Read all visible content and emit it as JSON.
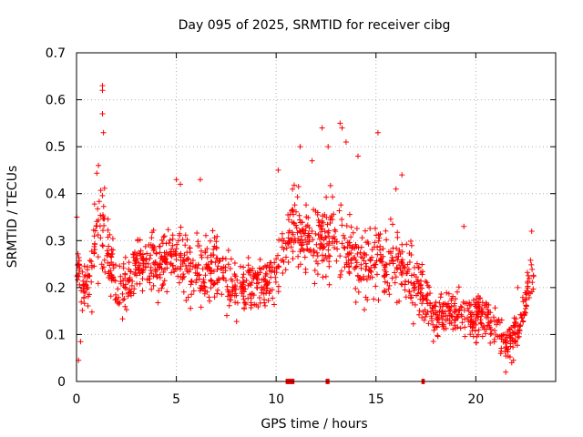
{
  "chart_data": {
    "type": "scatter",
    "title": "Day 095 of 2025, SRMTID for receiver cibg",
    "xlabel": "GPS time / hours",
    "ylabel": "SRMTID / TECUs",
    "xlim": [
      0,
      24
    ],
    "ylim": [
      0,
      0.7
    ],
    "x_ticks": [
      0,
      5,
      10,
      15,
      20
    ],
    "y_ticks": [
      0,
      0.1,
      0.2,
      0.3,
      0.4,
      0.5,
      0.6,
      0.7
    ],
    "x_tick_labels": [
      "0",
      "5",
      "10",
      "15",
      "20"
    ],
    "y_tick_labels": [
      "0",
      "0.1",
      "0.2",
      "0.3",
      "0.4",
      "0.5",
      "0.6",
      "0.7"
    ],
    "grid": true,
    "marker": "plus",
    "color": "#ff0000",
    "series": [
      {
        "name": "SRMTID",
        "profile": [
          {
            "x": 0.0,
            "y": 0.27,
            "spread": 0.06
          },
          {
            "x": 0.3,
            "y": 0.2,
            "spread": 0.05
          },
          {
            "x": 0.7,
            "y": 0.22,
            "spread": 0.06
          },
          {
            "x": 1.0,
            "y": 0.33,
            "spread": 0.08
          },
          {
            "x": 1.3,
            "y": 0.33,
            "spread": 0.1
          },
          {
            "x": 1.7,
            "y": 0.27,
            "spread": 0.06
          },
          {
            "x": 2.2,
            "y": 0.2,
            "spread": 0.06
          },
          {
            "x": 3.0,
            "y": 0.24,
            "spread": 0.06
          },
          {
            "x": 4.0,
            "y": 0.25,
            "spread": 0.05
          },
          {
            "x": 5.0,
            "y": 0.27,
            "spread": 0.06
          },
          {
            "x": 6.0,
            "y": 0.24,
            "spread": 0.06
          },
          {
            "x": 7.0,
            "y": 0.24,
            "spread": 0.06
          },
          {
            "x": 8.0,
            "y": 0.19,
            "spread": 0.05
          },
          {
            "x": 9.0,
            "y": 0.21,
            "spread": 0.05
          },
          {
            "x": 10.0,
            "y": 0.22,
            "spread": 0.05
          },
          {
            "x": 10.8,
            "y": 0.33,
            "spread": 0.07
          },
          {
            "x": 12.0,
            "y": 0.3,
            "spread": 0.07
          },
          {
            "x": 13.0,
            "y": 0.32,
            "spread": 0.08
          },
          {
            "x": 14.0,
            "y": 0.25,
            "spread": 0.07
          },
          {
            "x": 15.0,
            "y": 0.26,
            "spread": 0.07
          },
          {
            "x": 16.0,
            "y": 0.25,
            "spread": 0.07
          },
          {
            "x": 17.0,
            "y": 0.2,
            "spread": 0.06
          },
          {
            "x": 18.0,
            "y": 0.14,
            "spread": 0.04
          },
          {
            "x": 19.0,
            "y": 0.15,
            "spread": 0.04
          },
          {
            "x": 20.0,
            "y": 0.14,
            "spread": 0.04
          },
          {
            "x": 21.0,
            "y": 0.12,
            "spread": 0.04
          },
          {
            "x": 21.6,
            "y": 0.08,
            "spread": 0.03
          },
          {
            "x": 22.2,
            "y": 0.12,
            "spread": 0.03
          },
          {
            "x": 22.9,
            "y": 0.25,
            "spread": 0.04
          }
        ],
        "highlights": [
          {
            "x": 0.1,
            "y": 0.045
          },
          {
            "x": 1.3,
            "y": 0.63
          },
          {
            "x": 1.3,
            "y": 0.62
          },
          {
            "x": 1.3,
            "y": 0.57
          },
          {
            "x": 1.35,
            "y": 0.53
          },
          {
            "x": 1.1,
            "y": 0.46
          },
          {
            "x": 5.0,
            "y": 0.43
          },
          {
            "x": 5.2,
            "y": 0.42
          },
          {
            "x": 6.2,
            "y": 0.43
          },
          {
            "x": 10.1,
            "y": 0.45
          },
          {
            "x": 11.2,
            "y": 0.5
          },
          {
            "x": 11.8,
            "y": 0.47
          },
          {
            "x": 12.3,
            "y": 0.54
          },
          {
            "x": 12.6,
            "y": 0.5
          },
          {
            "x": 13.2,
            "y": 0.55
          },
          {
            "x": 13.3,
            "y": 0.54
          },
          {
            "x": 13.5,
            "y": 0.51
          },
          {
            "x": 14.1,
            "y": 0.48
          },
          {
            "x": 15.1,
            "y": 0.53
          },
          {
            "x": 16.0,
            "y": 0.41
          },
          {
            "x": 16.3,
            "y": 0.44
          },
          {
            "x": 19.4,
            "y": 0.33
          },
          {
            "x": 21.5,
            "y": 0.02
          },
          {
            "x": 21.8,
            "y": 0.04
          },
          {
            "x": 22.1,
            "y": 0.2
          },
          {
            "x": 22.8,
            "y": 0.32
          },
          {
            "x": 0.2,
            "y": 0.085
          }
        ],
        "baseline_clusters": [
          {
            "x0": 10.5,
            "x1": 10.9
          },
          {
            "x0": 12.5,
            "x1": 12.65
          },
          {
            "x0": 17.3,
            "x1": 17.45
          }
        ]
      }
    ]
  }
}
